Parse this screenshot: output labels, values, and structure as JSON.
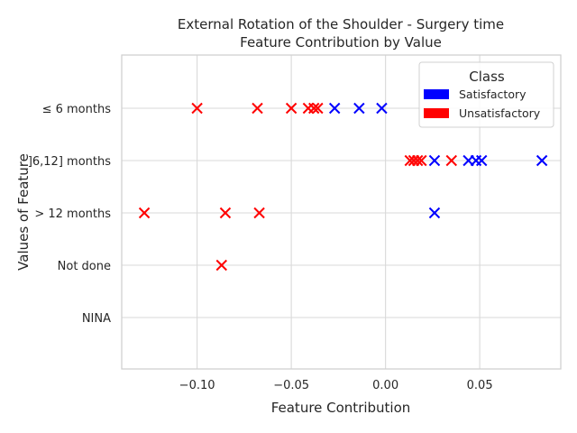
{
  "chart_data": {
    "type": "scatter",
    "title": [
      "External Rotation of the Shoulder - Surgery time",
      "Feature Contribution by Value"
    ],
    "xlabel": "Feature Contribution",
    "ylabel": "Values of Feature",
    "xlim": [
      -0.14,
      0.093
    ],
    "x_ticks": [
      -0.1,
      -0.05,
      0.0,
      0.05
    ],
    "x_tick_labels": [
      "−0.10",
      "−0.05",
      "0.00",
      "0.05"
    ],
    "categories": [
      "≤ 6 months",
      "]6,12] months",
      "> 12 months",
      "Not done",
      "NINA"
    ],
    "grid": true,
    "legend": {
      "title": "Class",
      "placement": "top-right",
      "entries": [
        {
          "label": "Satisfactory",
          "color": "#0000ff"
        },
        {
          "label": "Unsatisfactory",
          "color": "#ff0000"
        }
      ]
    },
    "marker": "x",
    "series": [
      {
        "name": "Satisfactory",
        "color": "#0000ff",
        "points": [
          {
            "category": "≤ 6 months",
            "x": -0.027
          },
          {
            "category": "≤ 6 months",
            "x": -0.014
          },
          {
            "category": "≤ 6 months",
            "x": -0.002
          },
          {
            "category": "]6,12] months",
            "x": 0.026
          },
          {
            "category": "]6,12] months",
            "x": 0.044
          },
          {
            "category": "]6,12] months",
            "x": 0.048
          },
          {
            "category": "]6,12] months",
            "x": 0.051
          },
          {
            "category": "]6,12] months",
            "x": 0.083
          },
          {
            "category": "> 12 months",
            "x": 0.026
          }
        ]
      },
      {
        "name": "Unsatisfactory",
        "color": "#ff0000",
        "points": [
          {
            "category": "≤ 6 months",
            "x": -0.1
          },
          {
            "category": "≤ 6 months",
            "x": -0.068
          },
          {
            "category": "≤ 6 months",
            "x": -0.05
          },
          {
            "category": "≤ 6 months",
            "x": -0.041
          },
          {
            "category": "≤ 6 months",
            "x": -0.038
          },
          {
            "category": "≤ 6 months",
            "x": -0.036
          },
          {
            "category": "]6,12] months",
            "x": 0.013
          },
          {
            "category": "]6,12] months",
            "x": 0.015
          },
          {
            "category": "]6,12] months",
            "x": 0.017
          },
          {
            "category": "]6,12] months",
            "x": 0.019
          },
          {
            "category": "]6,12] months",
            "x": 0.035
          },
          {
            "category": "> 12 months",
            "x": -0.128
          },
          {
            "category": "> 12 months",
            "x": -0.085
          },
          {
            "category": "> 12 months",
            "x": -0.067
          },
          {
            "category": "Not done",
            "x": -0.087
          }
        ]
      }
    ]
  }
}
